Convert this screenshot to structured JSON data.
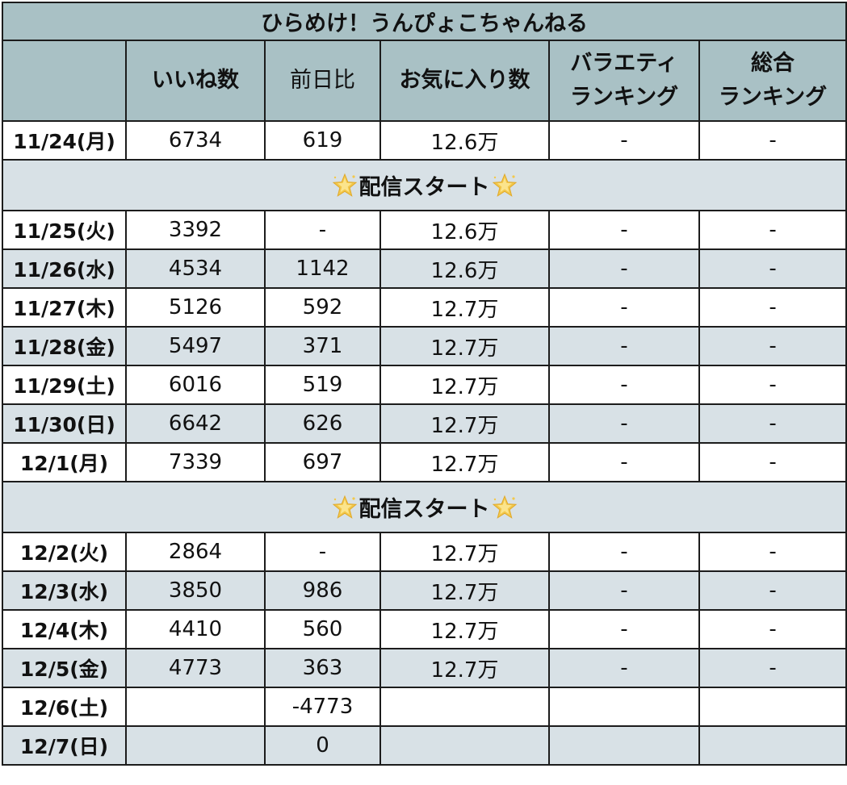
{
  "title": "ひらめけ！うんぴょこちゃんねる",
  "columns": [
    {
      "lines": [
        "いいね数"
      ]
    },
    {
      "lines": [
        "前日比"
      ]
    },
    {
      "lines": [
        "お気に入り数"
      ]
    },
    {
      "lines": [
        "バラエティ",
        "ランキング"
      ]
    },
    {
      "lines": [
        "総合",
        "ランキング"
      ]
    }
  ],
  "separator_label": "配信スタート",
  "icons": {
    "separator_icon": "sparkle-star-icon",
    "star_color": "#f3c84b"
  },
  "colors": {
    "header_bg": "#a9c1c5",
    "shade_bg": "#d8e1e6",
    "border": "#1c1c1c"
  },
  "rows": [
    {
      "type": "data",
      "date": "11/24(月)",
      "likes": "6734",
      "diff": "619",
      "favorites": "12.6万",
      "variety_rank": "-",
      "overall_rank": "-"
    },
    {
      "type": "separator"
    },
    {
      "type": "data",
      "date": "11/25(火)",
      "likes": "3392",
      "diff": "-",
      "favorites": "12.6万",
      "variety_rank": "-",
      "overall_rank": "-"
    },
    {
      "type": "data",
      "date": "11/26(水)",
      "likes": "4534",
      "diff": "1142",
      "favorites": "12.6万",
      "variety_rank": "-",
      "overall_rank": "-"
    },
    {
      "type": "data",
      "date": "11/27(木)",
      "likes": "5126",
      "diff": "592",
      "favorites": "12.7万",
      "variety_rank": "-",
      "overall_rank": "-"
    },
    {
      "type": "data",
      "date": "11/28(金)",
      "likes": "5497",
      "diff": "371",
      "favorites": "12.7万",
      "variety_rank": "-",
      "overall_rank": "-"
    },
    {
      "type": "data",
      "date": "11/29(土)",
      "likes": "6016",
      "diff": "519",
      "favorites": "12.7万",
      "variety_rank": "-",
      "overall_rank": "-"
    },
    {
      "type": "data",
      "date": "11/30(日)",
      "likes": "6642",
      "diff": "626",
      "favorites": "12.7万",
      "variety_rank": "-",
      "overall_rank": "-"
    },
    {
      "type": "data",
      "date": "12/1(月)",
      "likes": "7339",
      "diff": "697",
      "favorites": "12.7万",
      "variety_rank": "-",
      "overall_rank": "-"
    },
    {
      "type": "separator"
    },
    {
      "type": "data",
      "date": "12/2(火)",
      "likes": "2864",
      "diff": "-",
      "favorites": "12.7万",
      "variety_rank": "-",
      "overall_rank": "-"
    },
    {
      "type": "data",
      "date": "12/3(水)",
      "likes": "3850",
      "diff": "986",
      "favorites": "12.7万",
      "variety_rank": "-",
      "overall_rank": "-"
    },
    {
      "type": "data",
      "date": "12/4(木)",
      "likes": "4410",
      "diff": "560",
      "favorites": "12.7万",
      "variety_rank": "-",
      "overall_rank": "-"
    },
    {
      "type": "data",
      "date": "12/5(金)",
      "likes": "4773",
      "diff": "363",
      "favorites": "12.7万",
      "variety_rank": "-",
      "overall_rank": "-"
    },
    {
      "type": "data",
      "date": "12/6(土)",
      "likes": "",
      "diff": "-4773",
      "favorites": "",
      "variety_rank": "",
      "overall_rank": ""
    },
    {
      "type": "data",
      "date": "12/7(日)",
      "likes": "",
      "diff": "0",
      "favorites": "",
      "variety_rank": "",
      "overall_rank": ""
    }
  ]
}
